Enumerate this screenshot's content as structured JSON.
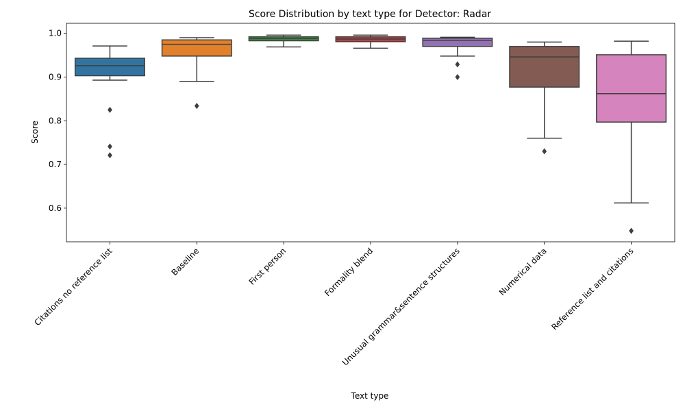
{
  "chart_data": {
    "type": "box",
    "title": "Score Distribution by text type for Detector: Radar",
    "xlabel": "Text type",
    "ylabel": "Score",
    "ylim": [
      0.523,
      1.023
    ],
    "yticks": [
      0.6,
      0.7,
      0.8,
      0.9,
      1.0
    ],
    "ytick_labels": [
      "0.6",
      "0.7",
      "0.8",
      "0.9",
      "1.0"
    ],
    "grid": false,
    "categories": [
      "Citations no reference list",
      "Baseline",
      "First person",
      "Formality blend",
      "Unusual grammar&sentence structures",
      "Numerical data",
      "Reference list and citations"
    ],
    "boxes": [
      {
        "whisker_low": 0.893,
        "q1": 0.903,
        "median": 0.926,
        "q3": 0.943,
        "whisker_high": 0.971,
        "outliers": [
          0.825,
          0.741,
          0.721
        ],
        "color": "#3274a1"
      },
      {
        "whisker_low": 0.89,
        "q1": 0.948,
        "median": 0.975,
        "q3": 0.985,
        "whisker_high": 0.99,
        "outliers": [
          0.834
        ],
        "color": "#e1812c"
      },
      {
        "whisker_low": 0.969,
        "q1": 0.983,
        "median": 0.988,
        "q3": 0.992,
        "whisker_high": 0.996,
        "outliers": [],
        "color": "#3a923a"
      },
      {
        "whisker_low": 0.966,
        "q1": 0.981,
        "median": 0.987,
        "q3": 0.992,
        "whisker_high": 0.996,
        "outliers": [],
        "color": "#c03d3e"
      },
      {
        "whisker_low": 0.948,
        "q1": 0.97,
        "median": 0.984,
        "q3": 0.989,
        "whisker_high": 0.991,
        "outliers": [
          0.929,
          0.9
        ],
        "color": "#9372b2"
      },
      {
        "whisker_low": 0.76,
        "q1": 0.877,
        "median": 0.946,
        "q3": 0.97,
        "whisker_high": 0.98,
        "outliers": [
          0.73
        ],
        "color": "#845b53"
      },
      {
        "whisker_low": 0.612,
        "q1": 0.797,
        "median": 0.862,
        "q3": 0.951,
        "whisker_high": 0.982,
        "outliers": [
          0.548
        ],
        "color": "#d684bd"
      }
    ]
  }
}
